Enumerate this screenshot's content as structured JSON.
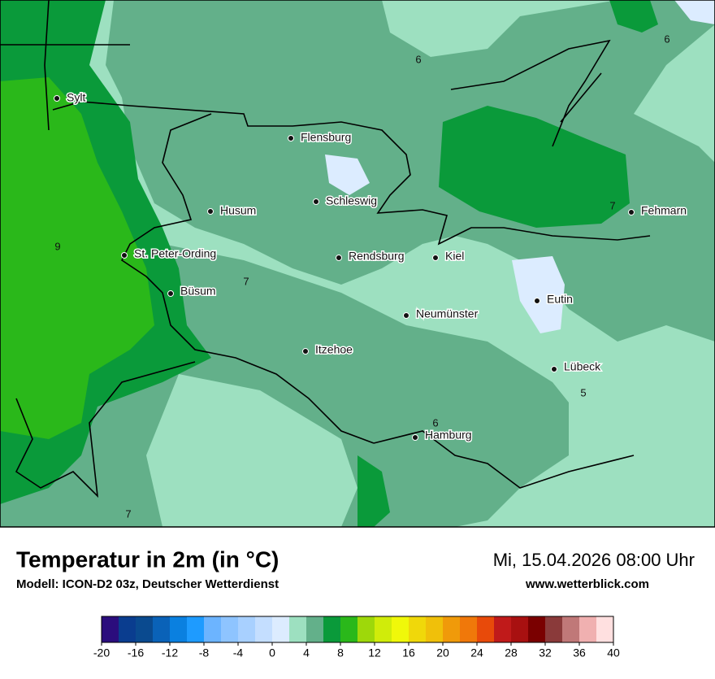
{
  "map": {
    "cities": [
      "Sylt",
      "Flensburg",
      "Schleswig",
      "Husum",
      "St. Peter-Ording",
      "Rendsburg",
      "Kiel",
      "Büsum",
      "Neumünster",
      "Eutin",
      "Fehmarn",
      "Itzehoe",
      "Lübeck",
      "Hamburg"
    ],
    "contour_labels": [
      6,
      6,
      7,
      9,
      7,
      5,
      6,
      7
    ]
  },
  "footer": {
    "title": "Temperatur in 2m (in °C)",
    "model": "Modell: ICON-D2 03z, Deutscher Wetterdienst",
    "datetime": "Mi, 15.04.2026 08:00 Uhr",
    "website": "www.wetterblick.com"
  },
  "colorbar": {
    "range": [
      -20,
      40
    ],
    "ticks": [
      -20,
      -16,
      -12,
      -8,
      -4,
      0,
      4,
      8,
      12,
      16,
      20,
      24,
      28,
      32,
      36,
      40
    ],
    "colors": [
      "#2b0d7d",
      "#0a3d8f",
      "#0a4a8f",
      "#0a62b8",
      "#0a80e0",
      "#1e9bff",
      "#6cb4ff",
      "#8ec4ff",
      "#a8d0ff",
      "#c4deff",
      "#dcecff",
      "#9de0c0",
      "#63b08a",
      "#0a9a3a",
      "#2ab81a",
      "#9ed80a",
      "#d0ec0a",
      "#f0f80a",
      "#f0d80a",
      "#f0c00a",
      "#f09a0a",
      "#f0780a",
      "#e84a0a",
      "#c01a1a",
      "#a81010",
      "#7a0000",
      "#8a3a3a",
      "#c07878",
      "#f0b0b0",
      "#ffe0e0"
    ]
  }
}
